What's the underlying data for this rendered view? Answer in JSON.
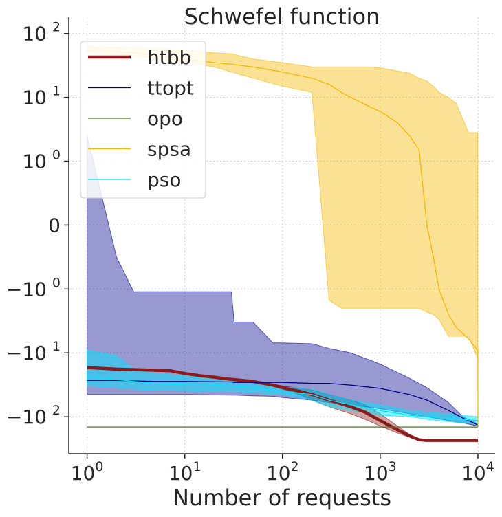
{
  "chart_data": {
    "type": "line",
    "title": "Schwefel function",
    "xlabel": "Number of requests",
    "ylabel": "",
    "x_scale": "log",
    "y_scale": "symlog",
    "y_linthresh": 1,
    "xlim": [
      0.65,
      15000
    ],
    "ylim": [
      -380,
      180
    ],
    "grid": true,
    "legend_position": "top-left",
    "x_ticks": [
      {
        "value": 1,
        "base": "10",
        "exp": "0"
      },
      {
        "value": 10,
        "base": "10",
        "exp": "1"
      },
      {
        "value": 100,
        "base": "10",
        "exp": "2"
      },
      {
        "value": 1000,
        "base": "10",
        "exp": "3"
      },
      {
        "value": 10000,
        "base": "10",
        "exp": "4"
      }
    ],
    "y_ticks": [
      {
        "value": 100,
        "base": "10",
        "exp": "2"
      },
      {
        "value": 10,
        "base": "10",
        "exp": "1"
      },
      {
        "value": 1,
        "base": "10",
        "exp": "0"
      },
      {
        "value": 0,
        "base": "0",
        "exp": ""
      },
      {
        "value": -1,
        "base": "−10",
        "exp": "0"
      },
      {
        "value": -10,
        "base": "−10",
        "exp": "1"
      },
      {
        "value": -100,
        "base": "−10",
        "exp": "2"
      }
    ],
    "series": [
      {
        "name": "htbb",
        "color": "#8b1a1a",
        "line_width": 4.5,
        "band_opacity": 0.4,
        "x": [
          1,
          2,
          4,
          7,
          10,
          15,
          20,
          30,
          50,
          80,
          100,
          150,
          200,
          300,
          500,
          700,
          1000,
          1500,
          2000,
          2500,
          3000,
          5000,
          10000
        ],
        "y": [
          -17,
          -18,
          -18.5,
          -19,
          -21,
          -23,
          -24,
          -26,
          -28,
          -32,
          -35,
          -40,
          -45,
          -55,
          -70,
          -85,
          -115,
          -160,
          -200,
          -230,
          -235,
          -235,
          -235
        ],
        "lower": [
          -17,
          -18,
          -18.5,
          -19,
          -21,
          -23,
          -24,
          -26,
          -28,
          -33,
          -37,
          -45,
          -55,
          -70,
          -90,
          -110,
          -140,
          -180,
          -210,
          -235,
          -235,
          -235,
          -235
        ],
        "upper": [
          -17,
          -18,
          -18.5,
          -19,
          -21,
          -23,
          -24,
          -26,
          -28,
          -31,
          -33,
          -36,
          -38,
          -45,
          -55,
          -65,
          -90,
          -140,
          -190,
          -230,
          -235,
          -235,
          -235
        ]
      },
      {
        "name": "ttopt",
        "color": "#00008b",
        "line_width": 1.3,
        "band_opacity": 0.4,
        "x": [
          1,
          2,
          3,
          5,
          10,
          30,
          32,
          50,
          80,
          100,
          200,
          300,
          500,
          1000,
          2000,
          3000,
          5000,
          7000,
          10000
        ],
        "y": [
          -27,
          -27,
          -27.5,
          -28,
          -28,
          -28.5,
          -29,
          -29,
          -29,
          -29,
          -30,
          -30,
          -32,
          -36,
          -45,
          -55,
          -80,
          -105,
          -135
        ],
        "lower": [
          -45,
          -45,
          -45,
          -45,
          -45,
          -46,
          -46,
          -47,
          -48,
          -50,
          -55,
          -60,
          -65,
          -75,
          -90,
          -100,
          -115,
          -125,
          -140
        ],
        "upper": [
          2.5,
          -0.5,
          -1.1,
          -1.1,
          -1.1,
          -1.1,
          -3.3,
          -3.3,
          -7,
          -7,
          -7.2,
          -8.5,
          -10,
          -15,
          -25,
          -35,
          -60,
          -100,
          -130
        ]
      },
      {
        "name": "opo",
        "color": "#4e7a12",
        "line_width": 1.3,
        "band_opacity": 0,
        "x": [
          1,
          10000
        ],
        "y": [
          -145,
          -145
        ],
        "lower": [
          -145,
          -145
        ],
        "upper": [
          -145,
          -145
        ]
      },
      {
        "name": "spsa",
        "color": "#f5b800",
        "line_width": 1.3,
        "band_opacity": 0.42,
        "x": [
          1,
          3,
          5,
          10,
          20,
          30,
          50,
          100,
          200,
          300,
          400,
          500,
          800,
          1000,
          1500,
          2000,
          2500,
          3000,
          3500,
          4000,
          5000,
          6000,
          8000,
          9900,
          9990,
          10000
        ],
        "y": [
          55,
          50,
          45,
          40,
          35,
          33,
          30,
          25,
          20,
          16,
          12,
          10,
          7,
          6,
          4,
          2.5,
          1.5,
          0,
          -0.5,
          -1,
          -2.5,
          -4,
          -6,
          -9,
          -9,
          -140
        ],
        "lower": [
          50,
          45,
          40,
          35,
          30,
          25,
          20,
          15,
          12,
          -1.5,
          -2,
          -2,
          -2,
          -2,
          -2,
          -2,
          -2,
          -2.3,
          -2.5,
          -3,
          -5.5,
          -5.5,
          -5.5,
          -12,
          -12,
          -140
        ],
        "upper": [
          62,
          60,
          58,
          55,
          50,
          48,
          40,
          35,
          30,
          30,
          30,
          30,
          30,
          29,
          26,
          24,
          20,
          18,
          15,
          12,
          10,
          8,
          2.8,
          2.8,
          2.8,
          -140
        ]
      },
      {
        "name": "pso",
        "color": "#00e5ff",
        "line_width": 1.3,
        "band_opacity": 0.5,
        "x": [
          1,
          2,
          3,
          5,
          10,
          20,
          30,
          50,
          100,
          200,
          300,
          500,
          1000,
          2000,
          3000,
          5000,
          7000,
          10000
        ],
        "y": [
          -23,
          -26,
          -28,
          -30,
          -31,
          -32,
          -33,
          -35,
          -40,
          -45,
          -55,
          -65,
          -80,
          -95,
          -100,
          -105,
          -110,
          -115
        ],
        "lower": [
          -33,
          -35,
          -37,
          -38,
          -39,
          -40,
          -40,
          -42,
          -45,
          -55,
          -70,
          -80,
          -95,
          -100,
          -110,
          -120,
          -125,
          -130
        ],
        "upper": [
          -9,
          -11,
          -18,
          -21,
          -23,
          -25,
          -27,
          -28,
          -34,
          -37,
          -45,
          -55,
          -65,
          -80,
          -85,
          -90,
          -95,
          -100
        ]
      }
    ]
  }
}
